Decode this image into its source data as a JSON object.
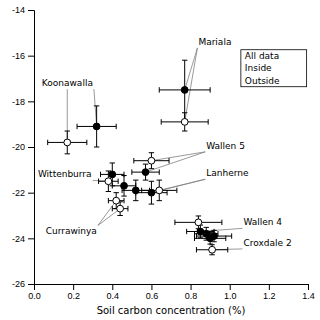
{
  "chart_data": {
    "type": "scatter",
    "xlabel": "Soil carbon concentration (%)",
    "xlim": [
      0.0,
      1.4
    ],
    "ylim": [
      -26,
      -14
    ],
    "xticks": [
      {
        "value": 0.0,
        "label": "0.0"
      },
      0.2,
      0.4,
      0.6,
      0.8,
      {
        "value": 1.0,
        "label": "1.0"
      },
      1.2,
      1.4
    ],
    "yticks": [
      -26,
      -24,
      -22,
      -20,
      -18,
      -16,
      -14
    ],
    "grid": false,
    "legend": "upper right",
    "legend_entries": [
      "All data",
      "Inside",
      "Outside"
    ],
    "series": [
      {
        "color": "black",
        "marker": "o",
        "x": [
          0.32,
          0.4,
          0.46,
          0.52,
          0.57,
          0.6,
          0.77,
          0.85,
          0.88,
          0.9,
          0.92
        ],
        "values": [
          -19.1,
          -21.2,
          -21.7,
          -21.9,
          -21.1,
          -22.0,
          -17.5,
          -23.7,
          -23.8,
          -24.0,
          -23.9
        ],
        "x_error": [
          0.1,
          0.06,
          0.06,
          0.07,
          0.07,
          0.08,
          0.13,
          0.07,
          0.06,
          0.08,
          0.09
        ],
        "y_error": [
          0.9,
          0.5,
          0.45,
          0.45,
          0.35,
          0.5,
          1.3,
          0.28,
          0.28,
          0.25,
          0.25
        ]
      },
      {
        "color": "white",
        "marker": "o",
        "x": [
          0.17,
          0.38,
          0.42,
          0.44,
          0.6,
          0.64,
          0.77,
          0.84,
          0.91
        ],
        "values": [
          -19.8,
          -21.5,
          -22.35,
          -22.7,
          -20.6,
          -21.9,
          -18.9,
          -23.3,
          -24.5
        ],
        "x_error": [
          0.1,
          0.05,
          0.04,
          0.04,
          0.09,
          0.09,
          0.12,
          0.12,
          0.08
        ],
        "y_error": [
          0.5,
          0.45,
          0.35,
          0.3,
          0.35,
          0.45,
          0.4,
          0.28,
          0.22
        ]
      }
    ],
    "annotations": [
      {
        "text": "Mariala",
        "xy": [
          0.77,
          -17.5
        ],
        "xytext": [
          0.84,
          -15.4
        ],
        "arrow_to_2": [
          0.77,
          -18.9
        ]
      },
      {
        "text": "Koonawalla",
        "xy": [
          0.32,
          -19.1
        ],
        "xytext": [
          0.04,
          -17.2
        ],
        "arrow_to_2": [
          0.17,
          -19.8
        ]
      },
      {
        "text": "Wittenburra",
        "xy": [
          0.38,
          -21.5
        ],
        "xytext": [
          0.02,
          -21.2
        ]
      },
      {
        "text": "Wallen 5",
        "xy": [
          0.6,
          -20.6
        ],
        "xytext": [
          0.88,
          -19.95
        ],
        "arrow_to_2": [
          0.57,
          -21.1
        ]
      },
      {
        "text": "Lanherne",
        "xy": [
          0.64,
          -21.9
        ],
        "xytext": [
          0.88,
          -21.15
        ],
        "arrow_to_2": [
          0.6,
          -22.0
        ]
      },
      {
        "text": "Currawinya",
        "xy": [
          0.42,
          -22.35
        ],
        "xytext": [
          0.06,
          -23.7
        ],
        "arrow_to_2": [
          0.44,
          -22.7
        ]
      },
      {
        "text": "Wallen 4",
        "xy": [
          0.85,
          -23.7
        ],
        "xytext": [
          1.07,
          -23.3
        ]
      },
      {
        "text": "Croxdale 2",
        "xy": [
          0.91,
          -24.5
        ],
        "xytext": [
          1.07,
          -24.2
        ]
      }
    ]
  }
}
